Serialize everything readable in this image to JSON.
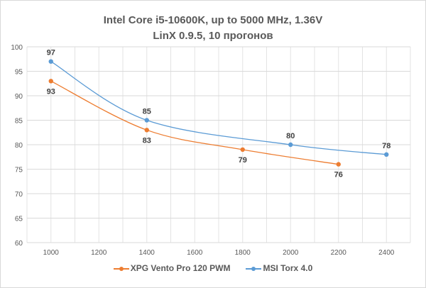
{
  "chart_data": {
    "type": "line",
    "title": "Intel Core i5-10600K, up to 5000 MHz, 1.36V",
    "subtitle": "LinX 0.9.5, 10 прогонов",
    "xlabel": "",
    "ylabel": "",
    "xlim": [
      900,
      2500
    ],
    "ylim": [
      60,
      100
    ],
    "xticks": [
      1000,
      1200,
      1400,
      1600,
      1800,
      2000,
      2200,
      2400
    ],
    "yticks": [
      60,
      65,
      70,
      75,
      80,
      85,
      90,
      95,
      100
    ],
    "grid": true,
    "smooth": true,
    "legend": "bottom",
    "series": [
      {
        "name": "XPG Vento Pro 120 PWM",
        "color": "#ed7d31",
        "x": [
          1000,
          1400,
          1800,
          2200
        ],
        "y": [
          93,
          83,
          79,
          76
        ]
      },
      {
        "name": "MSI Torx 4.0",
        "color": "#5b9bd5",
        "x": [
          1000,
          1400,
          2000,
          2400
        ],
        "y": [
          97,
          85,
          80,
          78
        ]
      }
    ]
  }
}
